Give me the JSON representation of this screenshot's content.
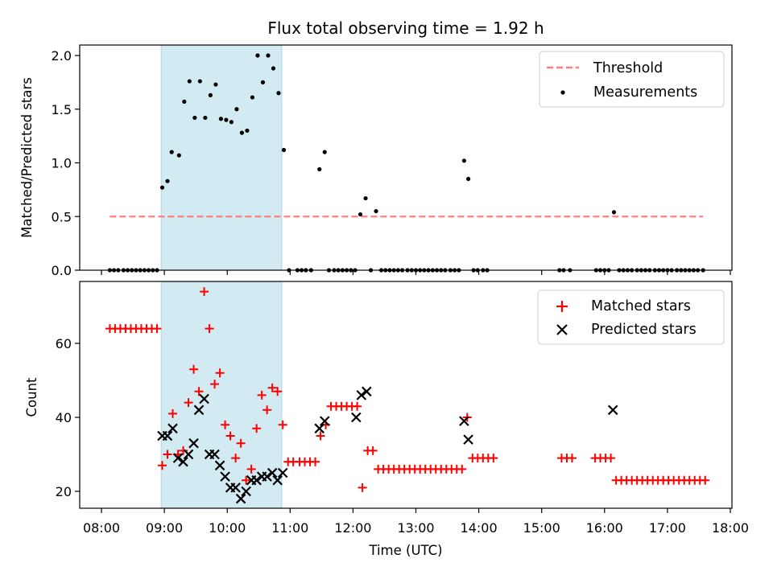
{
  "chart_data": [
    {
      "type": "scatter",
      "title": "Flux total observing time = 1.92 h",
      "xlabel": "",
      "ylabel": "Matched/Predicted stars",
      "xlim": [
        "07:45",
        "18:00"
      ],
      "ylim": [
        0,
        2.1
      ],
      "yticks": [
        0.0,
        0.5,
        1.0,
        1.5,
        2.0
      ],
      "ytick_labels": [
        "0.0",
        "0.5",
        "1.0",
        "1.5",
        "2.0"
      ],
      "grid": false,
      "legend_position": "top-right",
      "shaded_interval": {
        "start": "08:57",
        "end": "10:52",
        "color": "#add8e6"
      },
      "threshold": {
        "name": "Threshold",
        "value": 0.5,
        "x_start": "08:08",
        "x_end": "17:34",
        "color": "#ff7f7f",
        "style": "dashed"
      },
      "series": [
        {
          "name": "Measurements",
          "color": "#000000",
          "marker": "dot",
          "points": [
            [
              "08:08",
              0
            ],
            [
              "08:12",
              0
            ],
            [
              "08:16",
              0
            ],
            [
              "08:21",
              0
            ],
            [
              "08:25",
              0
            ],
            [
              "08:29",
              0
            ],
            [
              "08:33",
              0
            ],
            [
              "08:37",
              0
            ],
            [
              "08:41",
              0
            ],
            [
              "08:45",
              0
            ],
            [
              "08:49",
              0
            ],
            [
              "08:53",
              0
            ],
            [
              "08:58",
              0.77
            ],
            [
              "09:03",
              0.83
            ],
            [
              "09:07",
              1.1
            ],
            [
              "09:14",
              1.07
            ],
            [
              "09:19",
              1.57
            ],
            [
              "09:24",
              1.76
            ],
            [
              "09:29",
              1.42
            ],
            [
              "09:34",
              1.76
            ],
            [
              "09:39",
              1.42
            ],
            [
              "09:44",
              1.63
            ],
            [
              "09:49",
              1.73
            ],
            [
              "09:54",
              1.41
            ],
            [
              "09:59",
              1.4
            ],
            [
              "10:04",
              1.38
            ],
            [
              "10:09",
              1.5
            ],
            [
              "10:14",
              1.28
            ],
            [
              "10:19",
              1.3
            ],
            [
              "10:24",
              1.61
            ],
            [
              "10:29",
              2.0
            ],
            [
              "10:34",
              1.75
            ],
            [
              "10:39",
              2.0
            ],
            [
              "10:44",
              1.88
            ],
            [
              "10:49",
              1.65
            ],
            [
              "10:54",
              1.12
            ],
            [
              "10:59",
              0
            ],
            [
              "11:07",
              0
            ],
            [
              "11:11",
              0
            ],
            [
              "11:15",
              0
            ],
            [
              "11:20",
              0
            ],
            [
              "11:28",
              0.94
            ],
            [
              "11:33",
              1.1
            ],
            [
              "11:37",
              0
            ],
            [
              "11:42",
              0
            ],
            [
              "11:46",
              0
            ],
            [
              "11:50",
              0
            ],
            [
              "11:54",
              0
            ],
            [
              "11:58",
              0
            ],
            [
              "12:02",
              0
            ],
            [
              "12:07",
              0.52
            ],
            [
              "12:12",
              0.67
            ],
            [
              "12:17",
              0
            ],
            [
              "12:22",
              0.55
            ],
            [
              "12:27",
              0
            ],
            [
              "12:31",
              0
            ],
            [
              "12:35",
              0
            ],
            [
              "12:39",
              0
            ],
            [
              "12:43",
              0
            ],
            [
              "12:47",
              0
            ],
            [
              "12:52",
              0
            ],
            [
              "12:56",
              0
            ],
            [
              "13:00",
              0
            ],
            [
              "13:04",
              0
            ],
            [
              "13:08",
              0
            ],
            [
              "13:12",
              0
            ],
            [
              "13:16",
              0
            ],
            [
              "13:20",
              0
            ],
            [
              "13:24",
              0
            ],
            [
              "13:28",
              0
            ],
            [
              "13:33",
              0
            ],
            [
              "13:37",
              0
            ],
            [
              "13:41",
              0
            ],
            [
              "13:46",
              1.02
            ],
            [
              "13:50",
              0.85
            ],
            [
              "13:55",
              0
            ],
            [
              "13:59",
              0
            ],
            [
              "14:04",
              0
            ],
            [
              "14:08",
              0
            ],
            [
              "15:17",
              0
            ],
            [
              "15:21",
              0
            ],
            [
              "15:27",
              0
            ],
            [
              "15:52",
              0
            ],
            [
              "15:56",
              0
            ],
            [
              "16:00",
              0
            ],
            [
              "16:04",
              0
            ],
            [
              "16:09",
              0.54
            ],
            [
              "16:14",
              0
            ],
            [
              "16:18",
              0
            ],
            [
              "16:22",
              0
            ],
            [
              "16:26",
              0
            ],
            [
              "16:31",
              0
            ],
            [
              "16:35",
              0
            ],
            [
              "16:39",
              0
            ],
            [
              "16:43",
              0
            ],
            [
              "16:48",
              0
            ],
            [
              "16:52",
              0
            ],
            [
              "16:56",
              0
            ],
            [
              "17:00",
              0
            ],
            [
              "17:04",
              0
            ],
            [
              "17:09",
              0
            ],
            [
              "17:13",
              0
            ],
            [
              "17:17",
              0
            ],
            [
              "17:21",
              0
            ],
            [
              "17:25",
              0
            ],
            [
              "17:29",
              0
            ],
            [
              "17:34",
              0
            ]
          ]
        }
      ]
    },
    {
      "type": "scatter",
      "title": "",
      "xlabel": "Time (UTC)",
      "ylabel": "Count",
      "xlim": [
        "07:45",
        "18:00"
      ],
      "ylim": [
        15,
        76
      ],
      "yticks": [
        20,
        40,
        60
      ],
      "ytick_labels": [
        "20",
        "40",
        "60"
      ],
      "xticks": [
        "08:00",
        "09:00",
        "10:00",
        "11:00",
        "12:00",
        "13:00",
        "14:00",
        "15:00",
        "16:00",
        "17:00",
        "18:00"
      ],
      "xtick_labels": [
        "08:00",
        "09:00",
        "10:00",
        "11:00",
        "12:00",
        "13:00",
        "14:00",
        "15:00",
        "16:00",
        "17:00",
        "18:00"
      ],
      "grid": false,
      "legend_position": "top-right",
      "shaded_interval": {
        "start": "08:57",
        "end": "10:52",
        "color": "#add8e6"
      },
      "series": [
        {
          "name": "Matched stars",
          "color": "#ff0000",
          "marker": "plus",
          "points": [
            [
              "08:08",
              64
            ],
            [
              "08:13",
              64
            ],
            [
              "08:18",
              64
            ],
            [
              "08:23",
              64
            ],
            [
              "08:28",
              64
            ],
            [
              "08:33",
              64
            ],
            [
              "08:38",
              64
            ],
            [
              "08:43",
              64
            ],
            [
              "08:48",
              64
            ],
            [
              "08:53",
              64
            ],
            [
              "08:58",
              27
            ],
            [
              "09:03",
              30
            ],
            [
              "09:08",
              41
            ],
            [
              "09:13",
              30
            ],
            [
              "09:18",
              31
            ],
            [
              "09:23",
              44
            ],
            [
              "09:28",
              53
            ],
            [
              "09:33",
              47
            ],
            [
              "09:38",
              74
            ],
            [
              "09:43",
              64
            ],
            [
              "09:48",
              49
            ],
            [
              "09:53",
              52
            ],
            [
              "09:58",
              38
            ],
            [
              "10:03",
              35
            ],
            [
              "10:08",
              29
            ],
            [
              "10:13",
              33
            ],
            [
              "10:18",
              23
            ],
            [
              "10:23",
              26
            ],
            [
              "10:28",
              37
            ],
            [
              "10:33",
              46
            ],
            [
              "10:38",
              42
            ],
            [
              "10:43",
              48
            ],
            [
              "10:48",
              47
            ],
            [
              "10:53",
              38
            ],
            [
              "10:58",
              28
            ],
            [
              "11:03",
              28
            ],
            [
              "11:09",
              28
            ],
            [
              "11:14",
              28
            ],
            [
              "11:19",
              28
            ],
            [
              "11:24",
              28
            ],
            [
              "11:29",
              35
            ],
            [
              "11:34",
              38
            ],
            [
              "11:39",
              43
            ],
            [
              "11:44",
              43
            ],
            [
              "11:49",
              43
            ],
            [
              "11:54",
              43
            ],
            [
              "11:59",
              43
            ],
            [
              "12:04",
              43
            ],
            [
              "12:09",
              21
            ],
            [
              "12:14",
              31
            ],
            [
              "12:19",
              31
            ],
            [
              "12:24",
              26
            ],
            [
              "12:29",
              26
            ],
            [
              "12:34",
              26
            ],
            [
              "12:39",
              26
            ],
            [
              "12:44",
              26
            ],
            [
              "12:49",
              26
            ],
            [
              "12:54",
              26
            ],
            [
              "12:59",
              26
            ],
            [
              "13:04",
              26
            ],
            [
              "13:09",
              26
            ],
            [
              "13:14",
              26
            ],
            [
              "13:19",
              26
            ],
            [
              "13:24",
              26
            ],
            [
              "13:29",
              26
            ],
            [
              "13:34",
              26
            ],
            [
              "13:39",
              26
            ],
            [
              "13:44",
              26
            ],
            [
              "13:49",
              40
            ],
            [
              "13:54",
              29
            ],
            [
              "13:59",
              29
            ],
            [
              "14:04",
              29
            ],
            [
              "14:09",
              29
            ],
            [
              "14:14",
              29
            ],
            [
              "15:19",
              29
            ],
            [
              "15:24",
              29
            ],
            [
              "15:29",
              29
            ],
            [
              "15:51",
              29
            ],
            [
              "15:56",
              29
            ],
            [
              "16:01",
              29
            ],
            [
              "16:06",
              29
            ],
            [
              "16:11",
              23
            ],
            [
              "16:16",
              23
            ],
            [
              "16:21",
              23
            ],
            [
              "16:26",
              23
            ],
            [
              "16:31",
              23
            ],
            [
              "16:36",
              23
            ],
            [
              "16:41",
              23
            ],
            [
              "16:46",
              23
            ],
            [
              "16:51",
              23
            ],
            [
              "16:56",
              23
            ],
            [
              "17:01",
              23
            ],
            [
              "17:06",
              23
            ],
            [
              "17:11",
              23
            ],
            [
              "17:16",
              23
            ],
            [
              "17:21",
              23
            ],
            [
              "17:26",
              23
            ],
            [
              "17:31",
              23
            ],
            [
              "17:36",
              23
            ]
          ]
        },
        {
          "name": "Predicted stars",
          "color": "#000000",
          "marker": "x",
          "points": [
            [
              "08:58",
              35
            ],
            [
              "09:03",
              35
            ],
            [
              "09:08",
              37
            ],
            [
              "09:13",
              29
            ],
            [
              "09:18",
              28
            ],
            [
              "09:23",
              30
            ],
            [
              "09:28",
              33
            ],
            [
              "09:33",
              42
            ],
            [
              "09:38",
              45
            ],
            [
              "09:43",
              30
            ],
            [
              "09:48",
              30
            ],
            [
              "09:53",
              27
            ],
            [
              "09:58",
              24
            ],
            [
              "10:03",
              21
            ],
            [
              "10:08",
              21
            ],
            [
              "10:13",
              18
            ],
            [
              "10:18",
              20
            ],
            [
              "10:23",
              23
            ],
            [
              "10:28",
              23
            ],
            [
              "10:33",
              24
            ],
            [
              "10:38",
              24
            ],
            [
              "10:43",
              25
            ],
            [
              "10:48",
              23
            ],
            [
              "10:53",
              25
            ],
            [
              "11:28",
              37
            ],
            [
              "11:33",
              39
            ],
            [
              "12:03",
              40
            ],
            [
              "12:08",
              46
            ],
            [
              "12:13",
              47
            ],
            [
              "13:46",
              39
            ],
            [
              "13:50",
              34
            ],
            [
              "16:08",
              42
            ]
          ]
        }
      ]
    }
  ]
}
